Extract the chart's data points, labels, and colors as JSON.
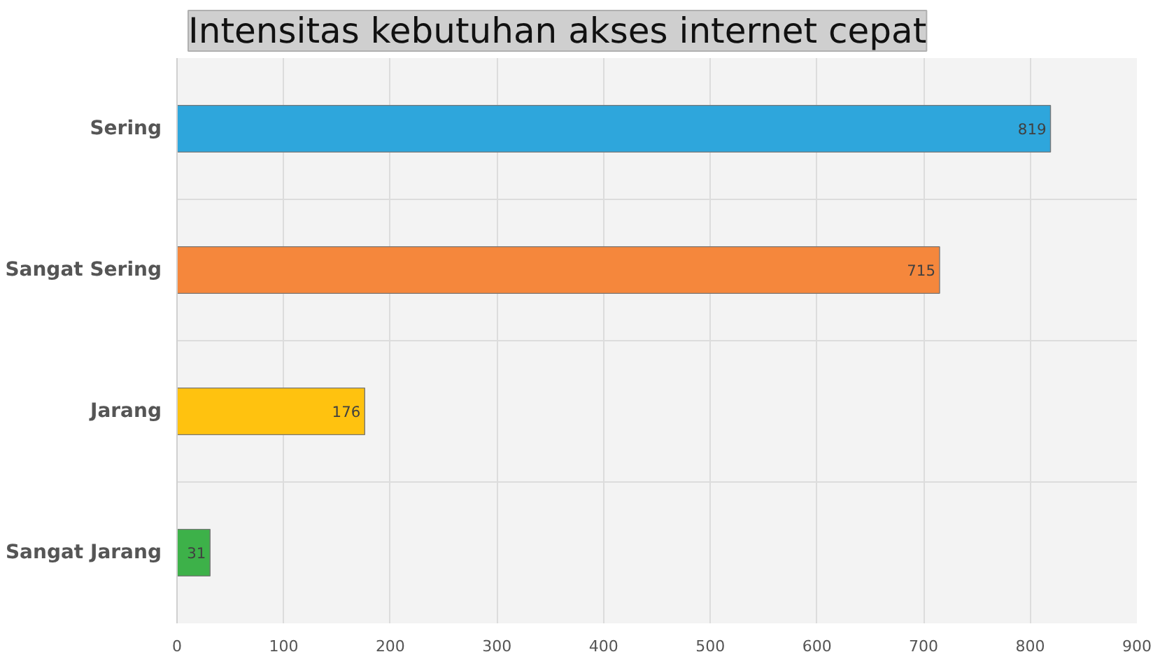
{
  "chart_data": {
    "type": "bar",
    "orientation": "horizontal",
    "title": "Intensitas kebutuhan akses internet cepat",
    "categories": [
      "Sering",
      "Sangat Sering",
      "Jarang",
      "Sangat Jarang"
    ],
    "values": [
      819,
      715,
      176,
      31
    ],
    "colors": [
      "#2ea6dc",
      "#f5873c",
      "#ffc20f",
      "#3db149"
    ],
    "xlim": [
      0,
      900
    ],
    "xticks": [
      0,
      100,
      200,
      300,
      400,
      500,
      600,
      700,
      800,
      900
    ],
    "grid": true,
    "data_labels": true
  }
}
